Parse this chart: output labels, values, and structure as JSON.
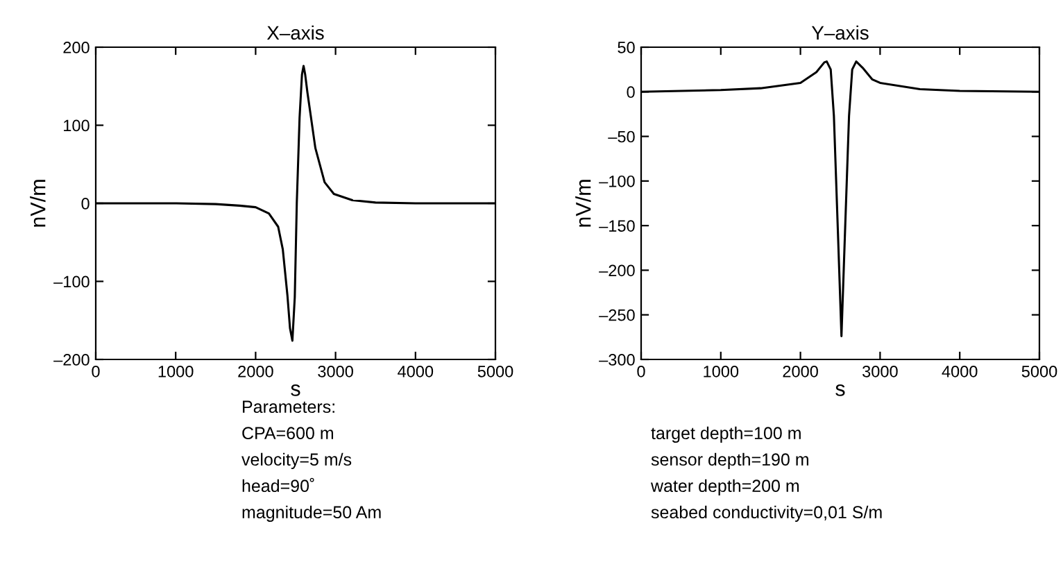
{
  "chart_data": [
    {
      "type": "line",
      "title": "X–axis",
      "xlabel": "s",
      "ylabel": "nV/m",
      "series": [
        {
          "color": "#000000",
          "x": [
            0,
            1000,
            1500,
            1800,
            2000,
            2166,
            2282,
            2340,
            2398,
            2430,
            2460,
            2490,
            2515,
            2550,
            2580,
            2600,
            2620,
            2648,
            2690,
            2747,
            2863,
            2979,
            3210,
            3500,
            4000,
            5000
          ],
          "values": [
            0,
            0,
            -1,
            -3,
            -5,
            -13,
            -30,
            -59,
            -118,
            -160,
            -176,
            -120,
            0,
            110,
            165,
            176,
            165,
            142,
            112,
            71,
            27,
            12,
            4,
            1,
            0,
            0
          ]
        }
      ],
      "xlim": [
        0,
        5000
      ],
      "xticks": [
        0,
        1000,
        2000,
        3000,
        4000,
        5000
      ],
      "ylim": [
        -200,
        200
      ],
      "yticks": [
        {
          "value": -200,
          "label": "–200"
        },
        {
          "value": -100,
          "label": "–100"
        },
        0,
        100,
        200
      ],
      "grid": false,
      "legend": false,
      "annotations": [
        "Parameters:",
        "CPA=600 m",
        "velocity=5 m/s",
        "head=90˚",
        "magnitude=50 Am"
      ]
    },
    {
      "type": "line",
      "title": "Y–axis",
      "xlabel": "s",
      "ylabel": "nV/m",
      "series": [
        {
          "color": "#000000",
          "x": [
            0,
            1000,
            1500,
            2000,
            2200,
            2300,
            2330,
            2380,
            2420,
            2470,
            2515,
            2560,
            2610,
            2650,
            2700,
            2780,
            2900,
            3000,
            3500,
            4000,
            5000
          ],
          "values": [
            0,
            2,
            4,
            10,
            22,
            33,
            34,
            25,
            -27,
            -156,
            -274,
            -156,
            -27,
            25,
            34,
            27,
            14,
            10,
            3,
            1,
            0
          ]
        }
      ],
      "xlim": [
        0,
        5000
      ],
      "xticks": [
        0,
        1000,
        2000,
        3000,
        4000,
        5000
      ],
      "ylim": [
        -300,
        50
      ],
      "yticks": [
        {
          "value": -300,
          "label": "–300"
        },
        {
          "value": -250,
          "label": "–250"
        },
        {
          "value": -200,
          "label": "–200"
        },
        {
          "value": -150,
          "label": "–150"
        },
        {
          "value": -100,
          "label": "–100"
        },
        {
          "value": -50,
          "label": "–50"
        },
        0,
        50
      ],
      "grid": false,
      "legend": false,
      "annotations": [
        "target depth=100 m",
        "sensor depth=190 m",
        "water depth=200 m",
        "seabed conductivity=0,01 S/m"
      ]
    }
  ]
}
